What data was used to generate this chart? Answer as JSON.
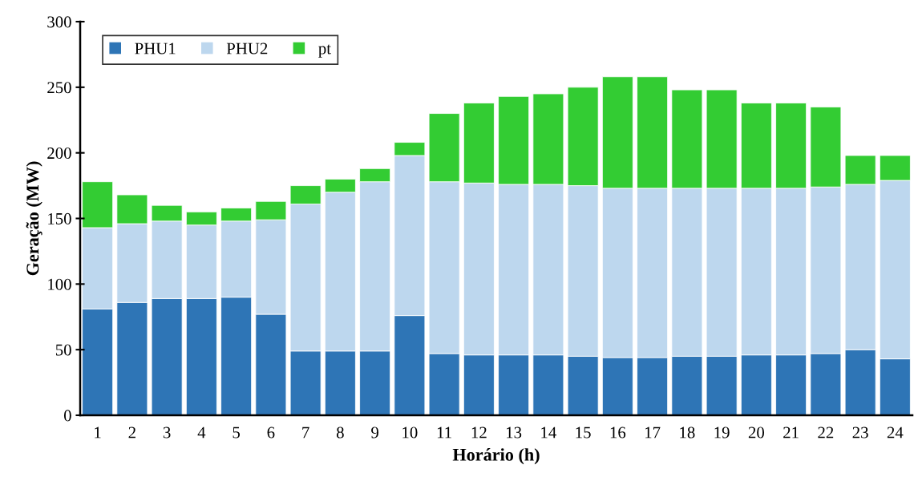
{
  "chart_data": {
    "type": "bar",
    "stacked": true,
    "xlabel": "Horário (h)",
    "ylabel": "Geração (MW)",
    "categories": [
      "1",
      "2",
      "3",
      "4",
      "5",
      "6",
      "7",
      "8",
      "9",
      "10",
      "11",
      "12",
      "13",
      "14",
      "15",
      "16",
      "17",
      "18",
      "19",
      "20",
      "21",
      "22",
      "23",
      "24"
    ],
    "series": [
      {
        "name": "PHU1",
        "color": "#2e75b6",
        "values": [
          81,
          86,
          89,
          89,
          90,
          77,
          49,
          49,
          49,
          76,
          47,
          46,
          46,
          46,
          45,
          44,
          44,
          45,
          45,
          46,
          46,
          47,
          50,
          43
        ]
      },
      {
        "name": "PHU2",
        "color": "#bdd7ee",
        "values": [
          62,
          60,
          59,
          56,
          58,
          72,
          112,
          121,
          129,
          122,
          131,
          131,
          130,
          130,
          130,
          129,
          129,
          128,
          128,
          127,
          127,
          127,
          126,
          136
        ]
      },
      {
        "name": "pt",
        "color": "#33cc33",
        "values": [
          35,
          22,
          12,
          10,
          10,
          14,
          14,
          10,
          10,
          10,
          52,
          61,
          67,
          69,
          75,
          85,
          85,
          75,
          75,
          65,
          65,
          61,
          22,
          19
        ]
      }
    ],
    "ylim": [
      0,
      300
    ],
    "yticks": [
      0,
      50,
      100,
      150,
      200,
      250,
      300
    ],
    "grid": false,
    "legend": "top left"
  }
}
